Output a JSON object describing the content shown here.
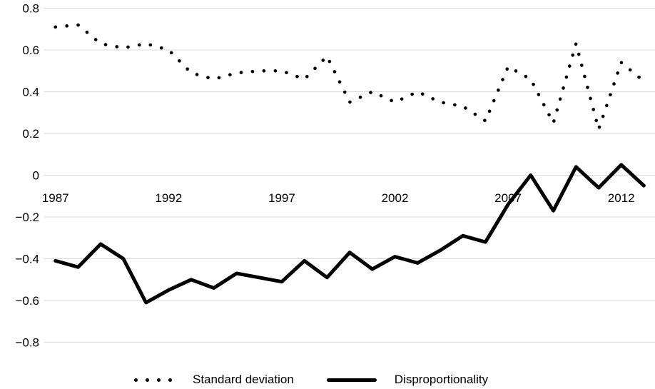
{
  "chart_data": {
    "type": "line",
    "title": "",
    "xlabel": "",
    "ylabel": "",
    "x": [
      1987,
      1988,
      1989,
      1990,
      1991,
      1992,
      1993,
      1994,
      1995,
      1996,
      1997,
      1998,
      1999,
      2000,
      2001,
      2002,
      2003,
      2004,
      2005,
      2006,
      2007,
      2008,
      2009,
      2010,
      2011,
      2012,
      2013
    ],
    "series": [
      {
        "name": "Standard deviation",
        "line_style": "dotted",
        "color": "#000000",
        "values": [
          0.71,
          0.72,
          0.63,
          0.61,
          0.63,
          0.6,
          0.49,
          0.46,
          0.49,
          0.5,
          0.5,
          0.46,
          0.57,
          0.35,
          0.4,
          0.35,
          0.4,
          0.35,
          0.33,
          0.26,
          0.52,
          0.46,
          0.25,
          0.63,
          0.22,
          0.54,
          0.45
        ]
      },
      {
        "name": "Disproportionality",
        "line_style": "solid",
        "color": "#000000",
        "values": [
          -0.41,
          -0.44,
          -0.33,
          -0.4,
          -0.61,
          -0.55,
          -0.5,
          -0.54,
          -0.47,
          -0.49,
          -0.51,
          -0.41,
          -0.49,
          -0.37,
          -0.45,
          -0.39,
          -0.42,
          -0.36,
          -0.29,
          -0.32,
          -0.14,
          0.0,
          -0.17,
          0.04,
          -0.06,
          0.05,
          -0.05
        ]
      }
    ],
    "x_ticks": [
      1987,
      1992,
      1997,
      2002,
      2007,
      2012
    ],
    "y_ticks": [
      0.8,
      0.6,
      0.4,
      0.2,
      0,
      -0.2,
      -0.4,
      -0.6,
      -0.8
    ],
    "y_tick_labels": [
      "0.8",
      "0.6",
      "0.4",
      "0.2",
      "0",
      "−0.2",
      "−0.4",
      "−0.6",
      "−0.8"
    ],
    "ylim": [
      -0.8,
      0.8
    ],
    "xlim": [
      1986.5,
      2013.5
    ],
    "gridlines": "horizontal",
    "gridline_color": "#D9D9D9",
    "background_color": "#FFFFFF",
    "text_color": "#000000",
    "legend_position": "bottom"
  }
}
